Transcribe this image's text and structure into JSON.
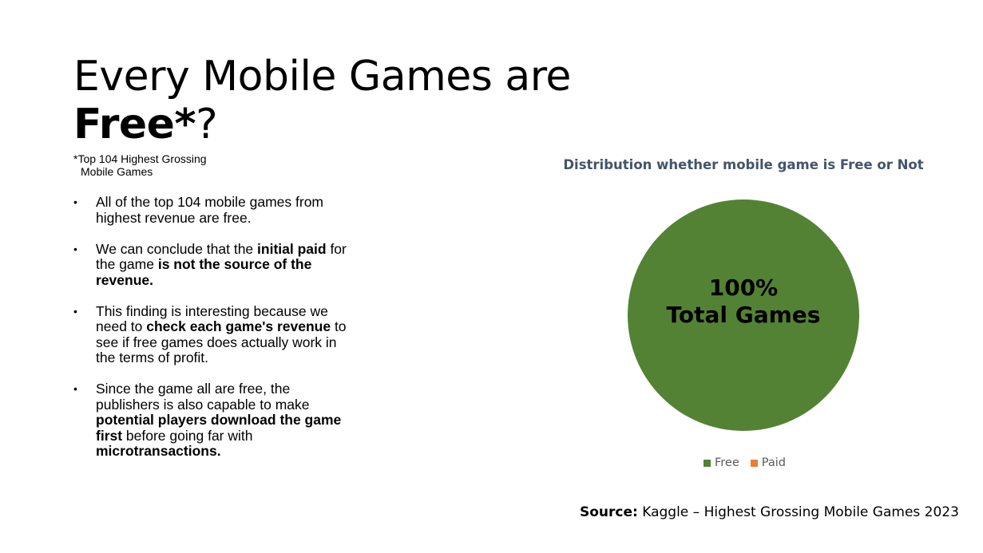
{
  "title": {
    "line1": "Every Mobile Games are",
    "line2_bold": "Free*",
    "line2_rest": "?"
  },
  "footnote": {
    "line1": "*Top 104 Highest Grossing",
    "line2": "Mobile Games"
  },
  "bullets": [
    [
      {
        "t": "All of the top 104 mobile games from highest revenue are free.",
        "b": false
      }
    ],
    [
      {
        "t": "We can conclude that the ",
        "b": false
      },
      {
        "t": "initial paid",
        "b": true
      },
      {
        "t": " for the game ",
        "b": false
      },
      {
        "t": "is not the source of the revenue.",
        "b": true
      }
    ],
    [
      {
        "t": "This finding is interesting because we need to ",
        "b": false
      },
      {
        "t": "check each game's revenue",
        "b": true
      },
      {
        "t": " to see if free games does actually work in the terms of profit.",
        "b": false
      }
    ],
    [
      {
        "t": "Since the game all are free, the publishers is also capable to make ",
        "b": false
      },
      {
        "t": "potential players download the game first",
        "b": true
      },
      {
        "t": " before going far with ",
        "b": false
      },
      {
        "t": "microtransactions.",
        "b": true
      }
    ]
  ],
  "bullet_symbol": "•",
  "chart_data": {
    "type": "pie",
    "title": "Distribution whether mobile game is Free or Not",
    "categories": [
      "Free",
      "Paid"
    ],
    "values": [
      104,
      0
    ],
    "colors": [
      "#548235",
      "#ed7d31"
    ],
    "center_label": {
      "line1": "100%",
      "line2": "Total Games"
    },
    "legend_position": "bottom"
  },
  "source": {
    "label": "Source:",
    "text": " Kaggle – Highest Grossing Mobile Games 2023"
  }
}
